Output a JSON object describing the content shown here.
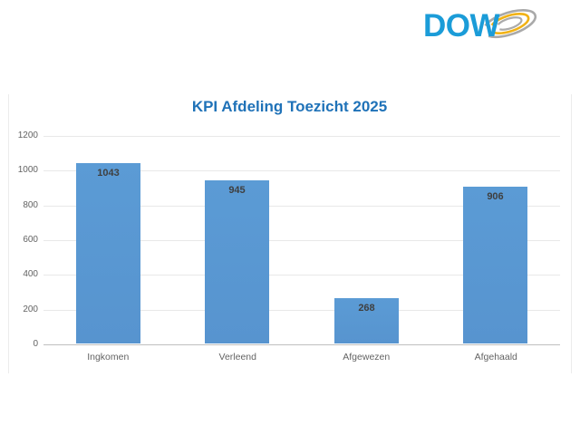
{
  "logo": {
    "text": "DOW",
    "text_color": "#1b9cd8",
    "arc_outer_color": "#a9a9a9",
    "arc_middle_color": "#f1b215",
    "arc_inner_color": "#ababab"
  },
  "chart_data": {
    "type": "bar",
    "title": "KPI Afdeling Toezicht 2025",
    "categories": [
      "Ingkomen",
      "Verleend",
      "Afgewezen",
      "Afgehaald"
    ],
    "values": [
      1043,
      945,
      268,
      906
    ],
    "xlabel": "",
    "ylabel": "",
    "ylim": [
      0,
      1200
    ],
    "ytick_step": 200,
    "yticks": [
      0,
      200,
      400,
      600,
      800,
      1000,
      1200
    ],
    "grid": true,
    "legend": "none",
    "bar_color": "#5b9bd5",
    "bar_color_bottom": "#5794cf",
    "title_color": "#1f72b8",
    "value_label_color": "#3f3f3f",
    "axis_label_color": "#636363",
    "grid_color": "#e8e8e8",
    "baseline_color": "#bfbfbf"
  }
}
